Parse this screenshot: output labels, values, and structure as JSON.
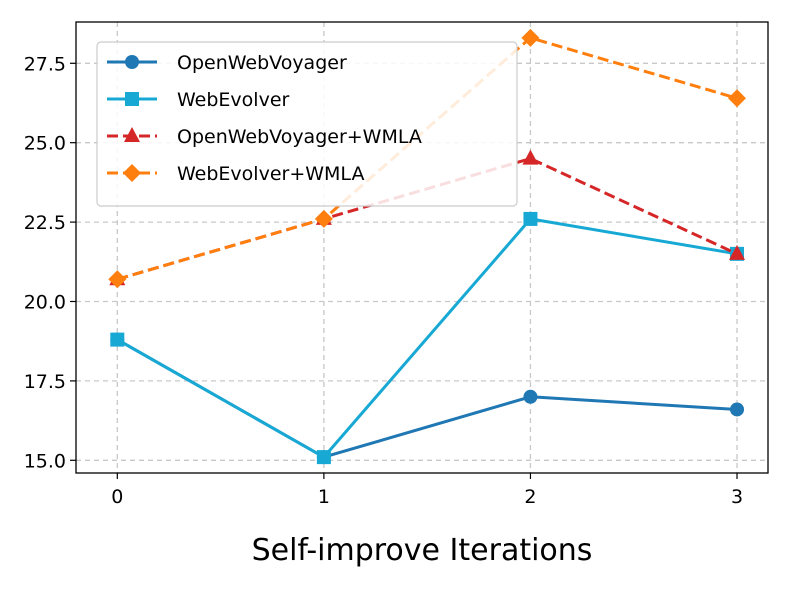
{
  "chart_data": {
    "type": "line",
    "x": [
      0,
      1,
      2,
      3
    ],
    "xlabel": "Self-improve Iterations",
    "ylabel": "",
    "xticks": [
      "0",
      "1",
      "2",
      "3"
    ],
    "yticks": [
      "15.0",
      "17.5",
      "20.0",
      "22.5",
      "25.0",
      "27.5"
    ],
    "xlim": [
      -0.2,
      3.15
    ],
    "ylim": [
      14.6,
      28.8
    ],
    "grid": true,
    "legend_position": "top-left",
    "series": [
      {
        "name": "OpenWebVoyager",
        "values": [
          18.8,
          15.1,
          17.0,
          16.6
        ],
        "color": "#1f77b4",
        "marker": "circle",
        "line_style": "solid"
      },
      {
        "name": "WebEvolver",
        "values": [
          18.8,
          15.1,
          22.6,
          21.5
        ],
        "color": "#17a9d4",
        "marker": "square",
        "line_style": "solid"
      },
      {
        "name": "OpenWebVoyager+WMLA",
        "values": [
          20.7,
          22.6,
          24.5,
          21.5
        ],
        "color": "#d62728",
        "marker": "triangle",
        "line_style": "dashed"
      },
      {
        "name": "WebEvolver+WMLA",
        "values": [
          20.7,
          22.6,
          28.3,
          26.4
        ],
        "color": "#ff7f0e",
        "marker": "diamond",
        "line_style": "dashed"
      }
    ]
  }
}
